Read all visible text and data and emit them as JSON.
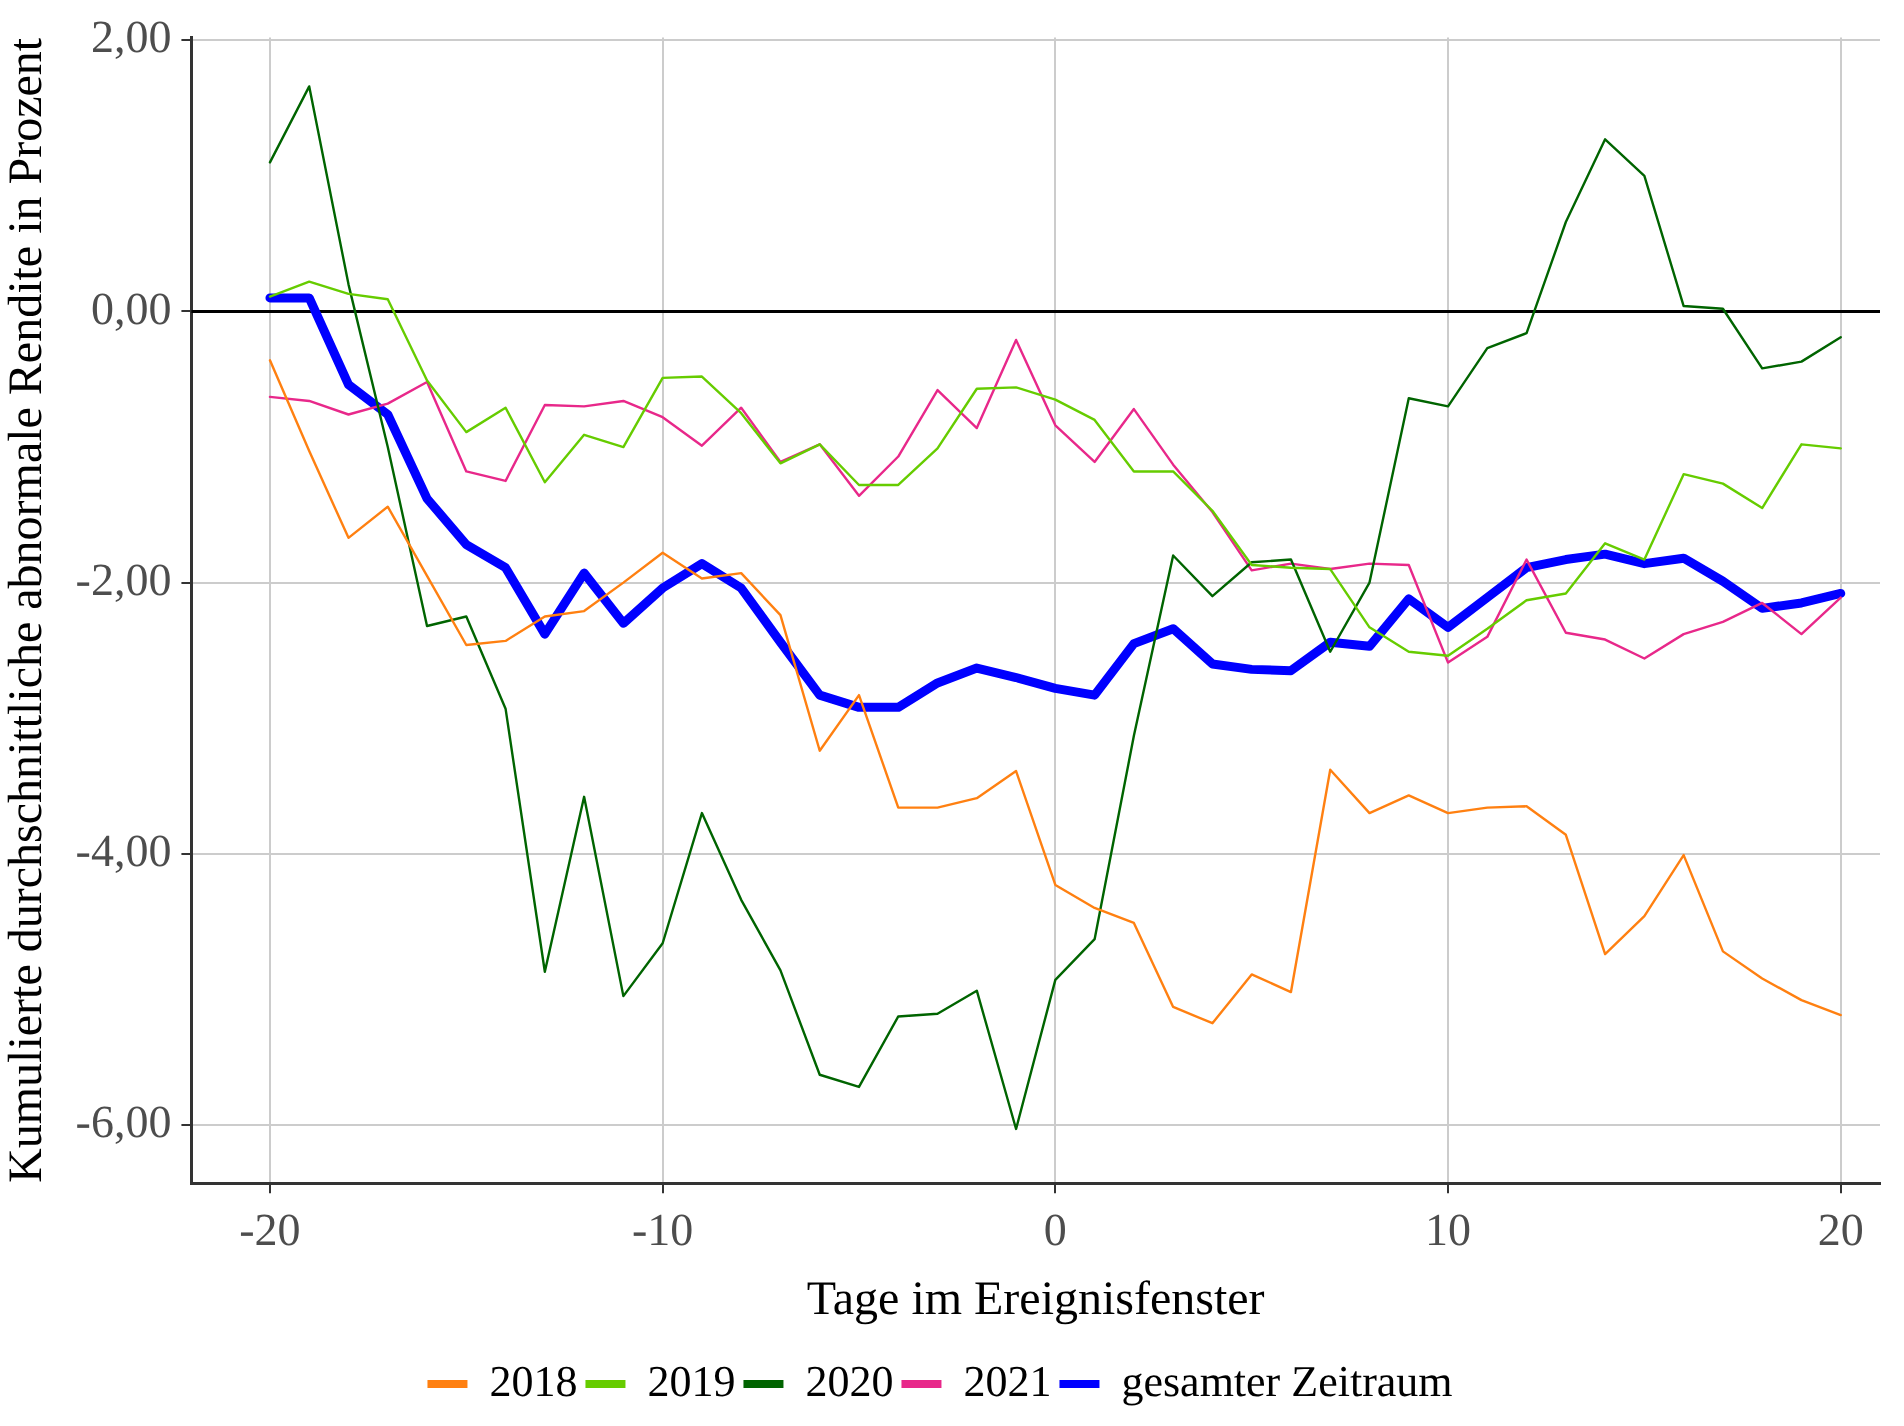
{
  "chart_data": {
    "type": "line",
    "xlabel": "Tage im Ereignisfenster",
    "ylabel": "Kumulierte durchschnittliche abnormale Rendite in Prozent",
    "x": [
      -20,
      -19,
      -18,
      -17,
      -16,
      -15,
      -14,
      -13,
      -12,
      -11,
      -10,
      -9,
      -8,
      -7,
      -6,
      -5,
      -4,
      -3,
      -2,
      -1,
      0,
      1,
      2,
      3,
      4,
      5,
      6,
      7,
      8,
      9,
      10,
      11,
      12,
      13,
      14,
      15,
      16,
      17,
      18,
      19,
      20
    ],
    "xlim": [
      -22,
      21
    ],
    "xticks": [
      -20,
      -10,
      0,
      10,
      20
    ],
    "ylim": [
      -6.43,
      2.02
    ],
    "yticks": [
      {
        "value": 2,
        "label": "2,00"
      },
      {
        "value": 0,
        "label": "0,00"
      },
      {
        "value": -2,
        "label": "-2,00"
      },
      {
        "value": -4,
        "label": "-4,00"
      },
      {
        "value": -6,
        "label": "-6,00"
      }
    ],
    "series": [
      {
        "name": "2018",
        "color": "#ff8011",
        "values": [
          -0.36,
          -1.03,
          -1.67,
          -1.44,
          -1.95,
          -2.46,
          -2.43,
          -2.25,
          -2.21,
          -2.0,
          -1.78,
          -1.97,
          -1.93,
          -2.24,
          -3.24,
          -2.83,
          -3.66,
          -3.66,
          -3.59,
          -3.39,
          -4.23,
          -4.4,
          -4.51,
          -5.13,
          -5.25,
          -4.89,
          -5.02,
          -3.38,
          -3.7,
          -3.57,
          -3.7,
          -3.66,
          -3.65,
          -3.86,
          -4.74,
          -4.46,
          -4.01,
          -4.72,
          -4.92,
          -5.08,
          -5.19
        ]
      },
      {
        "name": "2019",
        "color": "#66cc00",
        "values": [
          0.11,
          0.22,
          0.13,
          0.09,
          -0.51,
          -0.89,
          -0.71,
          -1.26,
          -0.91,
          -1.0,
          -0.49,
          -0.48,
          -0.75,
          -1.12,
          -0.98,
          -1.28,
          -1.28,
          -1.01,
          -0.57,
          -0.56,
          -0.65,
          -0.8,
          -1.18,
          -1.18,
          -1.47,
          -1.87,
          -1.89,
          -1.9,
          -2.33,
          -2.51,
          -2.54,
          -2.34,
          -2.13,
          -2.08,
          -1.71,
          -1.83,
          -1.2,
          -1.27,
          -1.45,
          -0.98,
          -1.01
        ]
      },
      {
        "name": "2020",
        "color": "#006400",
        "values": [
          1.1,
          1.66,
          0.2,
          -1.0,
          -2.32,
          -2.25,
          -2.93,
          -4.87,
          -3.58,
          -5.05,
          -4.66,
          -3.7,
          -4.34,
          -4.86,
          -5.63,
          -5.72,
          -5.2,
          -5.18,
          -5.01,
          -6.03,
          -4.93,
          -4.63,
          -3.13,
          -1.8,
          -2.1,
          -1.85,
          -1.83,
          -2.51,
          -2.0,
          -0.64,
          -0.7,
          -0.27,
          -0.16,
          0.66,
          1.27,
          1.0,
          0.04,
          0.02,
          -0.42,
          -0.37,
          -0.19
        ]
      },
      {
        "name": "2021",
        "color": "#e8288a",
        "values": [
          -0.63,
          -0.66,
          -0.76,
          -0.68,
          -0.52,
          -1.18,
          -1.25,
          -0.69,
          -0.7,
          -0.66,
          -0.78,
          -0.99,
          -0.71,
          -1.11,
          -0.98,
          -1.36,
          -1.07,
          -0.58,
          -0.86,
          -0.21,
          -0.84,
          -1.11,
          -0.72,
          -1.13,
          -1.48,
          -1.91,
          -1.86,
          -1.9,
          -1.86,
          -1.87,
          -2.59,
          -2.4,
          -1.83,
          -2.37,
          -2.42,
          -2.56,
          -2.38,
          -2.29,
          -2.15,
          -2.38,
          -2.11
        ]
      },
      {
        "name": "gesamter Zeitraum",
        "color": "#0000ff",
        "values": [
          0.1,
          0.1,
          -0.54,
          -0.76,
          -1.38,
          -1.72,
          -1.89,
          -2.38,
          -1.93,
          -2.3,
          -2.04,
          -1.86,
          -2.04,
          -2.44,
          -2.83,
          -2.92,
          -2.92,
          -2.74,
          -2.63,
          -2.7,
          -2.78,
          -2.83,
          -2.45,
          -2.34,
          -2.6,
          -2.64,
          -2.65,
          -2.44,
          -2.47,
          -2.12,
          -2.33,
          -2.11,
          -1.89,
          -1.83,
          -1.79,
          -1.86,
          -1.82,
          -1.99,
          -2.19,
          -2.15,
          -2.08
        ]
      }
    ],
    "ref_lines": [
      {
        "axis": "y",
        "value": 0,
        "color": "#000000"
      }
    ],
    "grid": true,
    "legend": "bottom",
    "marker": "none",
    "line_style": "solid"
  }
}
